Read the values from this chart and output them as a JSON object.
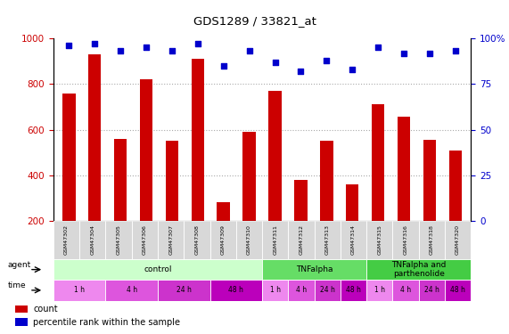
{
  "title": "GDS1289 / 33821_at",
  "samples": [
    "GSM47302",
    "GSM47304",
    "GSM47305",
    "GSM47306",
    "GSM47307",
    "GSM47308",
    "GSM47309",
    "GSM47310",
    "GSM47311",
    "GSM47312",
    "GSM47313",
    "GSM47314",
    "GSM47315",
    "GSM47316",
    "GSM47318",
    "GSM47320"
  ],
  "counts": [
    760,
    930,
    560,
    820,
    550,
    910,
    280,
    590,
    770,
    380,
    550,
    360,
    710,
    655,
    555,
    510
  ],
  "percentiles": [
    96,
    97,
    93,
    95,
    93,
    97,
    85,
    93,
    87,
    82,
    88,
    83,
    95,
    92,
    92,
    93
  ],
  "ylim_left": [
    200,
    1000
  ],
  "ylim_right": [
    0,
    100
  ],
  "yticks_left": [
    200,
    400,
    600,
    800,
    1000
  ],
  "yticks_right": [
    0,
    25,
    50,
    75,
    100
  ],
  "bar_color": "#cc0000",
  "dot_color": "#0000cc",
  "agent_groups": [
    {
      "label": "control",
      "start": 0,
      "end": 8,
      "color": "#ccffcc"
    },
    {
      "label": "TNFalpha",
      "start": 8,
      "end": 12,
      "color": "#66dd66"
    },
    {
      "label": "TNFalpha and\nparthenolide",
      "start": 12,
      "end": 16,
      "color": "#44cc44"
    }
  ],
  "time_spans": [
    {
      "label": "1 h",
      "start": 0,
      "end": 2,
      "color": "#ee88ee"
    },
    {
      "label": "4 h",
      "start": 2,
      "end": 4,
      "color": "#dd55dd"
    },
    {
      "label": "24 h",
      "start": 4,
      "end": 6,
      "color": "#cc33cc"
    },
    {
      "label": "48 h",
      "start": 6,
      "end": 8,
      "color": "#bb00bb"
    },
    {
      "label": "1 h",
      "start": 8,
      "end": 9,
      "color": "#ee88ee"
    },
    {
      "label": "4 h",
      "start": 9,
      "end": 10,
      "color": "#dd55dd"
    },
    {
      "label": "24 h",
      "start": 10,
      "end": 11,
      "color": "#cc33cc"
    },
    {
      "label": "48 h",
      "start": 11,
      "end": 12,
      "color": "#bb00bb"
    },
    {
      "label": "1 h",
      "start": 12,
      "end": 13,
      "color": "#ee88ee"
    },
    {
      "label": "4 h",
      "start": 13,
      "end": 14,
      "color": "#dd55dd"
    },
    {
      "label": "24 h",
      "start": 14,
      "end": 15,
      "color": "#cc33cc"
    },
    {
      "label": "48 h",
      "start": 15,
      "end": 16,
      "color": "#bb00bb"
    }
  ],
  "background_color": "#ffffff",
  "grid_color": "#aaaaaa",
  "grid_dotted_at": [
    400,
    600,
    800
  ],
  "legend_items": [
    {
      "label": "count",
      "color": "#cc0000"
    },
    {
      "label": "percentile rank within the sample",
      "color": "#0000cc"
    }
  ]
}
